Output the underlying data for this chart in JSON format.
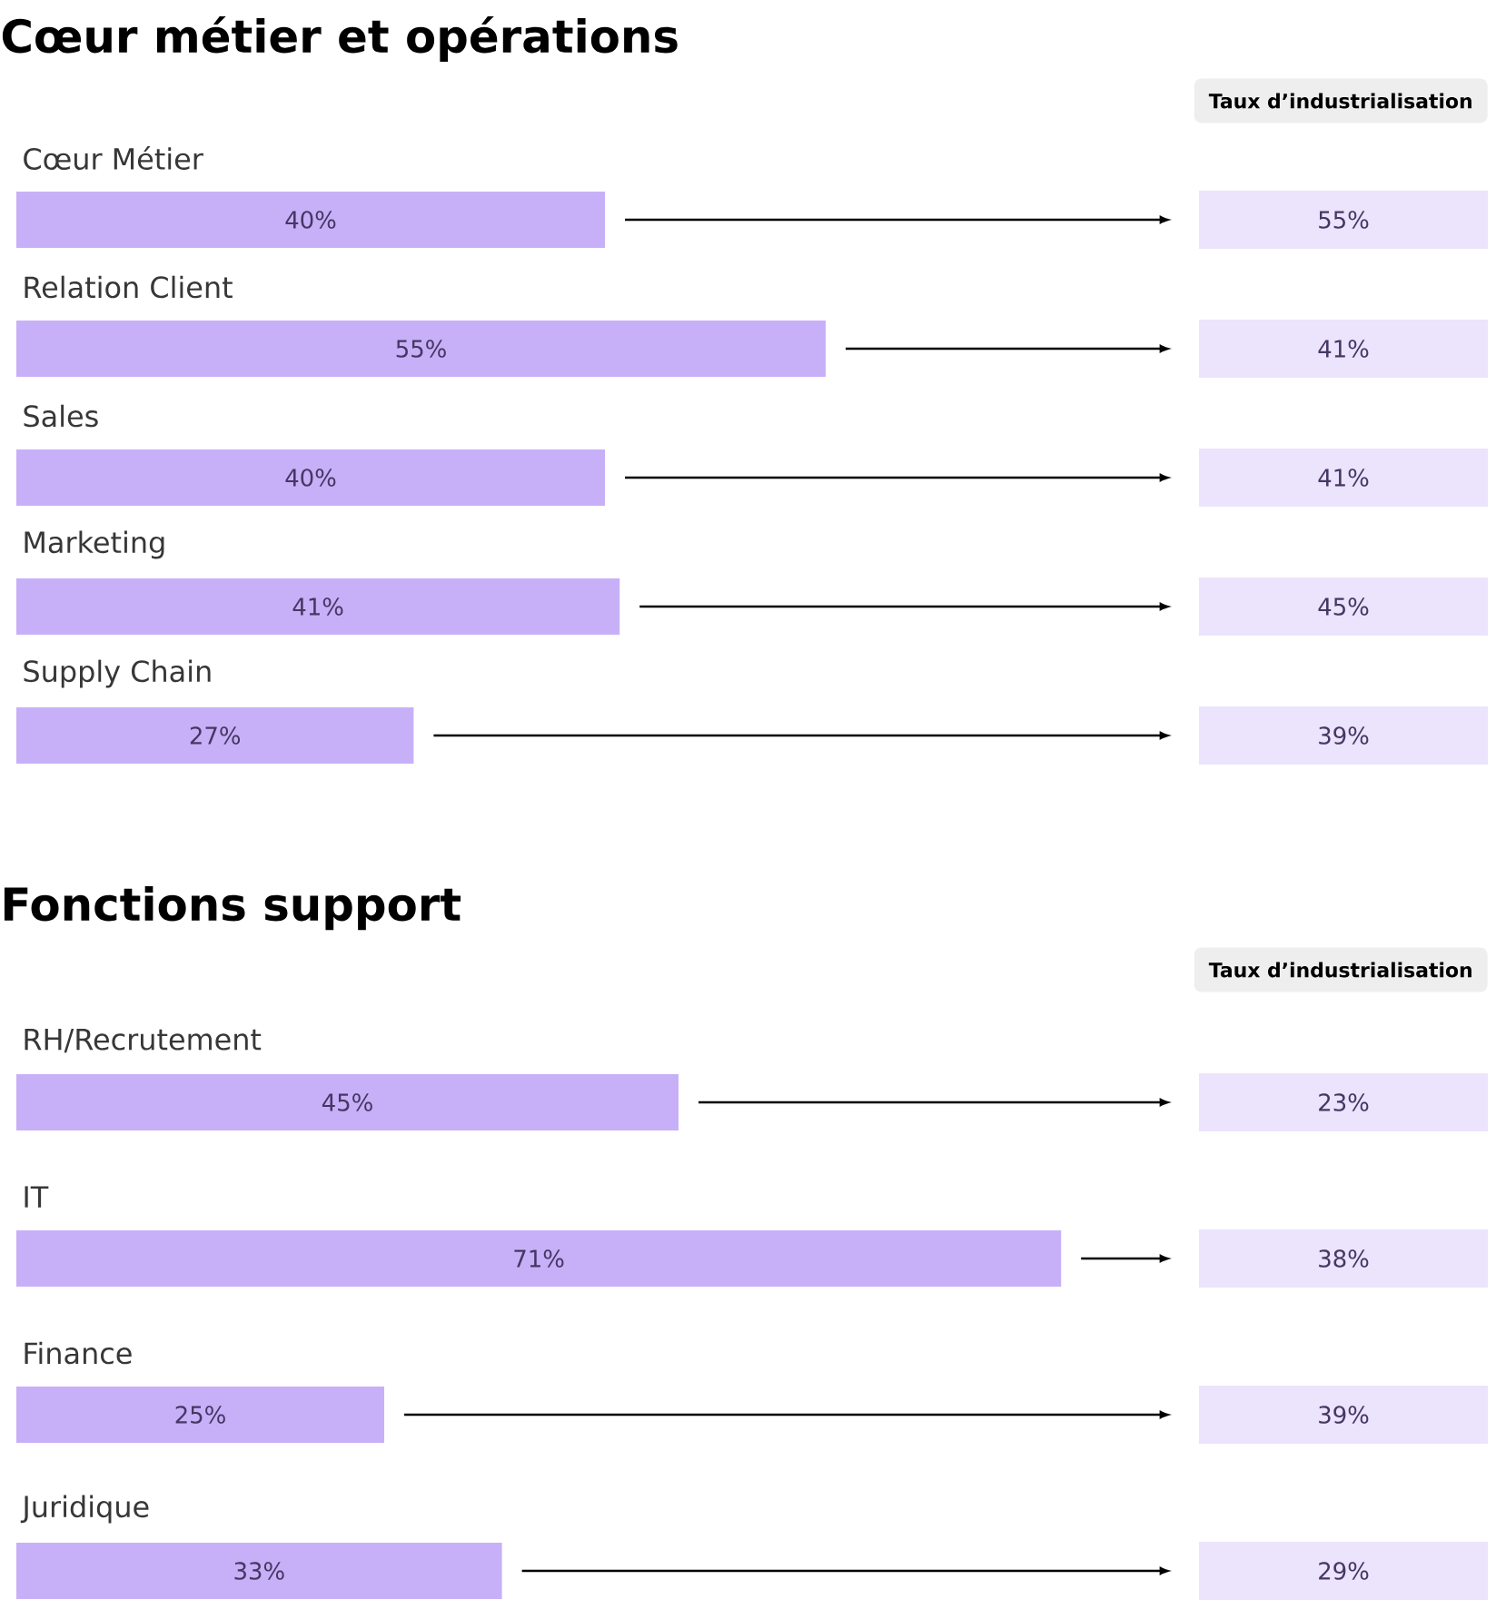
{
  "chart_data": [
    {
      "type": "bar",
      "orientation": "horizontal",
      "title": "Cœur métier et opérations",
      "categories": [
        "Cœur Métier",
        "Relation Client",
        "Sales",
        "Marketing",
        "Supply Chain"
      ],
      "values": [
        40,
        55,
        40,
        41,
        27
      ],
      "value_labels": [
        "40%",
        "55%",
        "40%",
        "41%",
        "27%"
      ],
      "color": "#c8b0f8",
      "xlim": [
        0,
        100
      ],
      "tick_labels": false,
      "annotations": [
        "Taux d’industrialisation",
        "55%",
        "41%",
        "41%",
        "45%",
        "39%"
      ]
    },
    {
      "type": "bar",
      "orientation": "horizontal",
      "title": "Fonctions support",
      "categories": [
        "RH/Recrutement",
        "IT",
        "Finance",
        "Juridique"
      ],
      "values": [
        45,
        71,
        25,
        33
      ],
      "value_labels": [
        "45%",
        "71%",
        "25%",
        "33%"
      ],
      "color": "#c8b0f8",
      "xlim": [
        0,
        100
      ],
      "tick_labels": false,
      "annotations": [
        "Taux d’industrialisation",
        "23%",
        "38%",
        "39%",
        "29%"
      ]
    }
  ]
}
